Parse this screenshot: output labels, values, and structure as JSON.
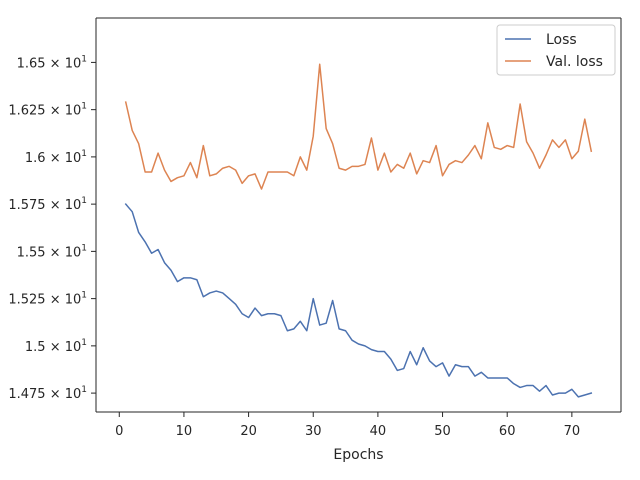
{
  "chart_data": {
    "type": "line",
    "xlabel": "Epochs",
    "ylabel": "",
    "xlim": [
      -3.6,
      77.6
    ],
    "ylim": [
      14.65,
      16.735
    ],
    "xticks": [
      0,
      10,
      20,
      30,
      40,
      50,
      60,
      70
    ],
    "yticks": [
      {
        "value": 14.75,
        "mantissa": "1.475",
        "exp": "1"
      },
      {
        "value": 15.0,
        "mantissa": "1.5",
        "exp": "1"
      },
      {
        "value": 15.25,
        "mantissa": "1.525",
        "exp": "1"
      },
      {
        "value": 15.5,
        "mantissa": "1.55",
        "exp": "1"
      },
      {
        "value": 15.75,
        "mantissa": "1.575",
        "exp": "1"
      },
      {
        "value": 16.0,
        "mantissa": "1.6",
        "exp": "1"
      },
      {
        "value": 16.25,
        "mantissa": "1.625",
        "exp": "1"
      },
      {
        "value": 16.5,
        "mantissa": "1.65",
        "exp": "1"
      }
    ],
    "grid": false,
    "legend_position": "top-right",
    "x": [
      1,
      2,
      3,
      4,
      5,
      6,
      7,
      8,
      9,
      10,
      11,
      12,
      13,
      14,
      15,
      16,
      17,
      18,
      19,
      20,
      21,
      22,
      23,
      24,
      25,
      26,
      27,
      28,
      29,
      30,
      31,
      32,
      33,
      34,
      35,
      36,
      37,
      38,
      39,
      40,
      41,
      42,
      43,
      44,
      45,
      46,
      47,
      48,
      49,
      50,
      51,
      52,
      53,
      54,
      55,
      56,
      57,
      58,
      59,
      60,
      61,
      62,
      63,
      64,
      65,
      66,
      67,
      68,
      69,
      70,
      71,
      72,
      73
    ],
    "series": [
      {
        "name": "Loss",
        "color": "#4c72b0",
        "values": [
          15.75,
          15.71,
          15.6,
          15.55,
          15.49,
          15.51,
          15.44,
          15.4,
          15.34,
          15.36,
          15.36,
          15.35,
          15.26,
          15.28,
          15.29,
          15.28,
          15.25,
          15.22,
          15.17,
          15.15,
          15.2,
          15.16,
          15.17,
          15.17,
          15.16,
          15.08,
          15.09,
          15.13,
          15.08,
          15.25,
          15.11,
          15.12,
          15.24,
          15.09,
          15.08,
          15.03,
          15.01,
          15.0,
          14.98,
          14.97,
          14.97,
          14.93,
          14.87,
          14.88,
          14.97,
          14.9,
          14.99,
          14.92,
          14.89,
          14.91,
          14.84,
          14.9,
          14.89,
          14.89,
          14.84,
          14.86,
          14.83,
          14.83,
          14.83,
          14.83,
          14.8,
          14.78,
          14.79,
          14.79,
          14.76,
          14.79,
          14.74,
          14.75,
          14.75,
          14.77,
          14.73,
          14.74,
          14.75
        ]
      },
      {
        "name": "Val. loss",
        "color": "#dd8452",
        "values": [
          16.29,
          16.14,
          16.07,
          15.92,
          15.92,
          16.02,
          15.93,
          15.87,
          15.89,
          15.9,
          15.97,
          15.89,
          16.06,
          15.9,
          15.91,
          15.94,
          15.95,
          15.93,
          15.86,
          15.9,
          15.91,
          15.83,
          15.92,
          15.92,
          15.92,
          15.92,
          15.9,
          16.0,
          15.93,
          16.11,
          16.49,
          16.15,
          16.07,
          15.94,
          15.93,
          15.95,
          15.95,
          15.96,
          16.1,
          15.93,
          16.02,
          15.92,
          15.96,
          15.94,
          16.02,
          15.91,
          15.98,
          15.97,
          16.06,
          15.9,
          15.96,
          15.98,
          15.97,
          16.01,
          16.06,
          15.99,
          16.18,
          16.05,
          16.04,
          16.06,
          16.05,
          16.28,
          16.08,
          16.02,
          15.94,
          16.01,
          16.09,
          16.05,
          16.09,
          15.99,
          16.03,
          16.2,
          16.03
        ]
      }
    ]
  }
}
